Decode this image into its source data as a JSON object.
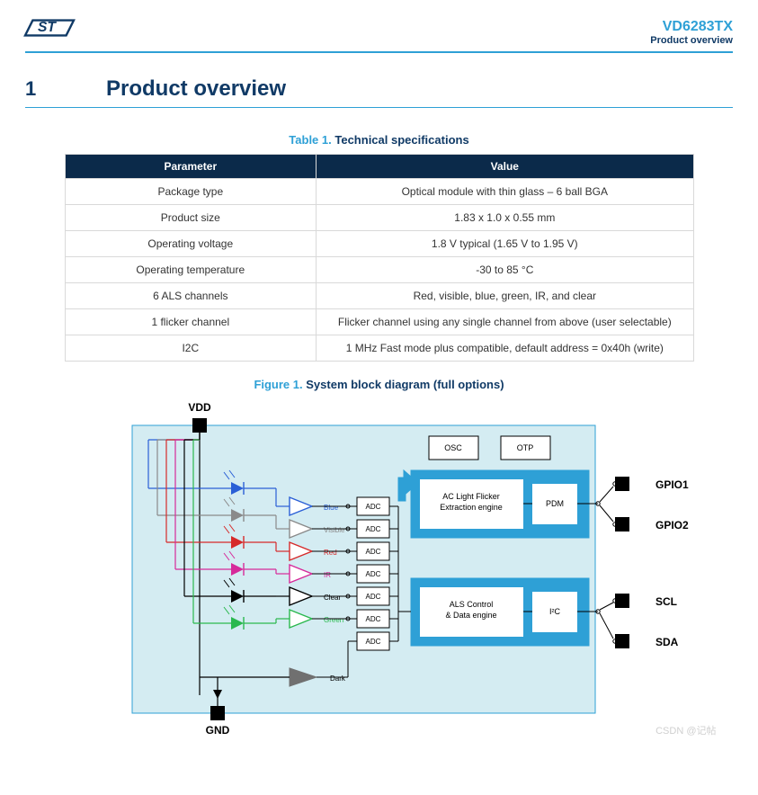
{
  "header": {
    "product_code": "VD6283TX",
    "subtitle": "Product overview"
  },
  "section": {
    "number": "1",
    "title": "Product overview"
  },
  "table1": {
    "caption_label": "Table 1.",
    "caption_text": "Technical specifications",
    "col_param": "Parameter",
    "col_value": "Value",
    "rows": [
      {
        "p": "Package type",
        "v": "Optical module with thin glass – 6 ball BGA"
      },
      {
        "p": "Product size",
        "v": "1.83 x 1.0 x 0.55 mm"
      },
      {
        "p": "Operating voltage",
        "v": "1.8 V typical (1.65 V to 1.95 V)"
      },
      {
        "p": "Operating temperature",
        "v": "-30 to 85 °C"
      },
      {
        "p": "6 ALS channels",
        "v": "Red, visible, blue, green, IR, and clear"
      },
      {
        "p": "1 flicker channel",
        "v": "Flicker channel using any single channel from above (user selectable)"
      },
      {
        "p": "I2C",
        "v": "1 MHz Fast mode plus compatible, default address = 0x40h (write)"
      }
    ]
  },
  "figure1": {
    "caption_label": "Figure 1.",
    "caption_text": "System block diagram (full options)",
    "pins": {
      "vdd": "VDD",
      "gnd": "GND",
      "gpio1": "GPIO1",
      "gpio2": "GPIO2",
      "scl": "SCL",
      "sda": "SDA"
    },
    "blocks": {
      "osc": "OSC",
      "otp": "OTP",
      "flicker": "AC Light Flicker Extraction engine",
      "pdm": "PDM",
      "als": "ALS Control & Data engine",
      "i2c": "I²C",
      "adc": "ADC"
    },
    "channel_colors": {
      "blue": {
        "name": "Blue",
        "color": "#2a5fd6"
      },
      "visible": {
        "name": "Visible",
        "color": "#8a8a8a"
      },
      "red": {
        "name": "Red",
        "color": "#d62a2a"
      },
      "ir": {
        "name": "IR",
        "color": "#d62a9a"
      },
      "clear": {
        "name": "Clear",
        "color": "#000000"
      },
      "green": {
        "name": "Green",
        "color": "#2ab84e"
      },
      "dark": {
        "name": "Dark",
        "color": "#707070"
      }
    },
    "style": {
      "bg": "#d4ecf2",
      "block_border": "#000000",
      "engine_bg": "#2ea0d6",
      "engine_inner": "#ffffff",
      "pin_fill": "#000000",
      "wire": "#000000",
      "arrow_fill": "#2ea0d6"
    }
  },
  "watermark": "CSDN @记帖"
}
